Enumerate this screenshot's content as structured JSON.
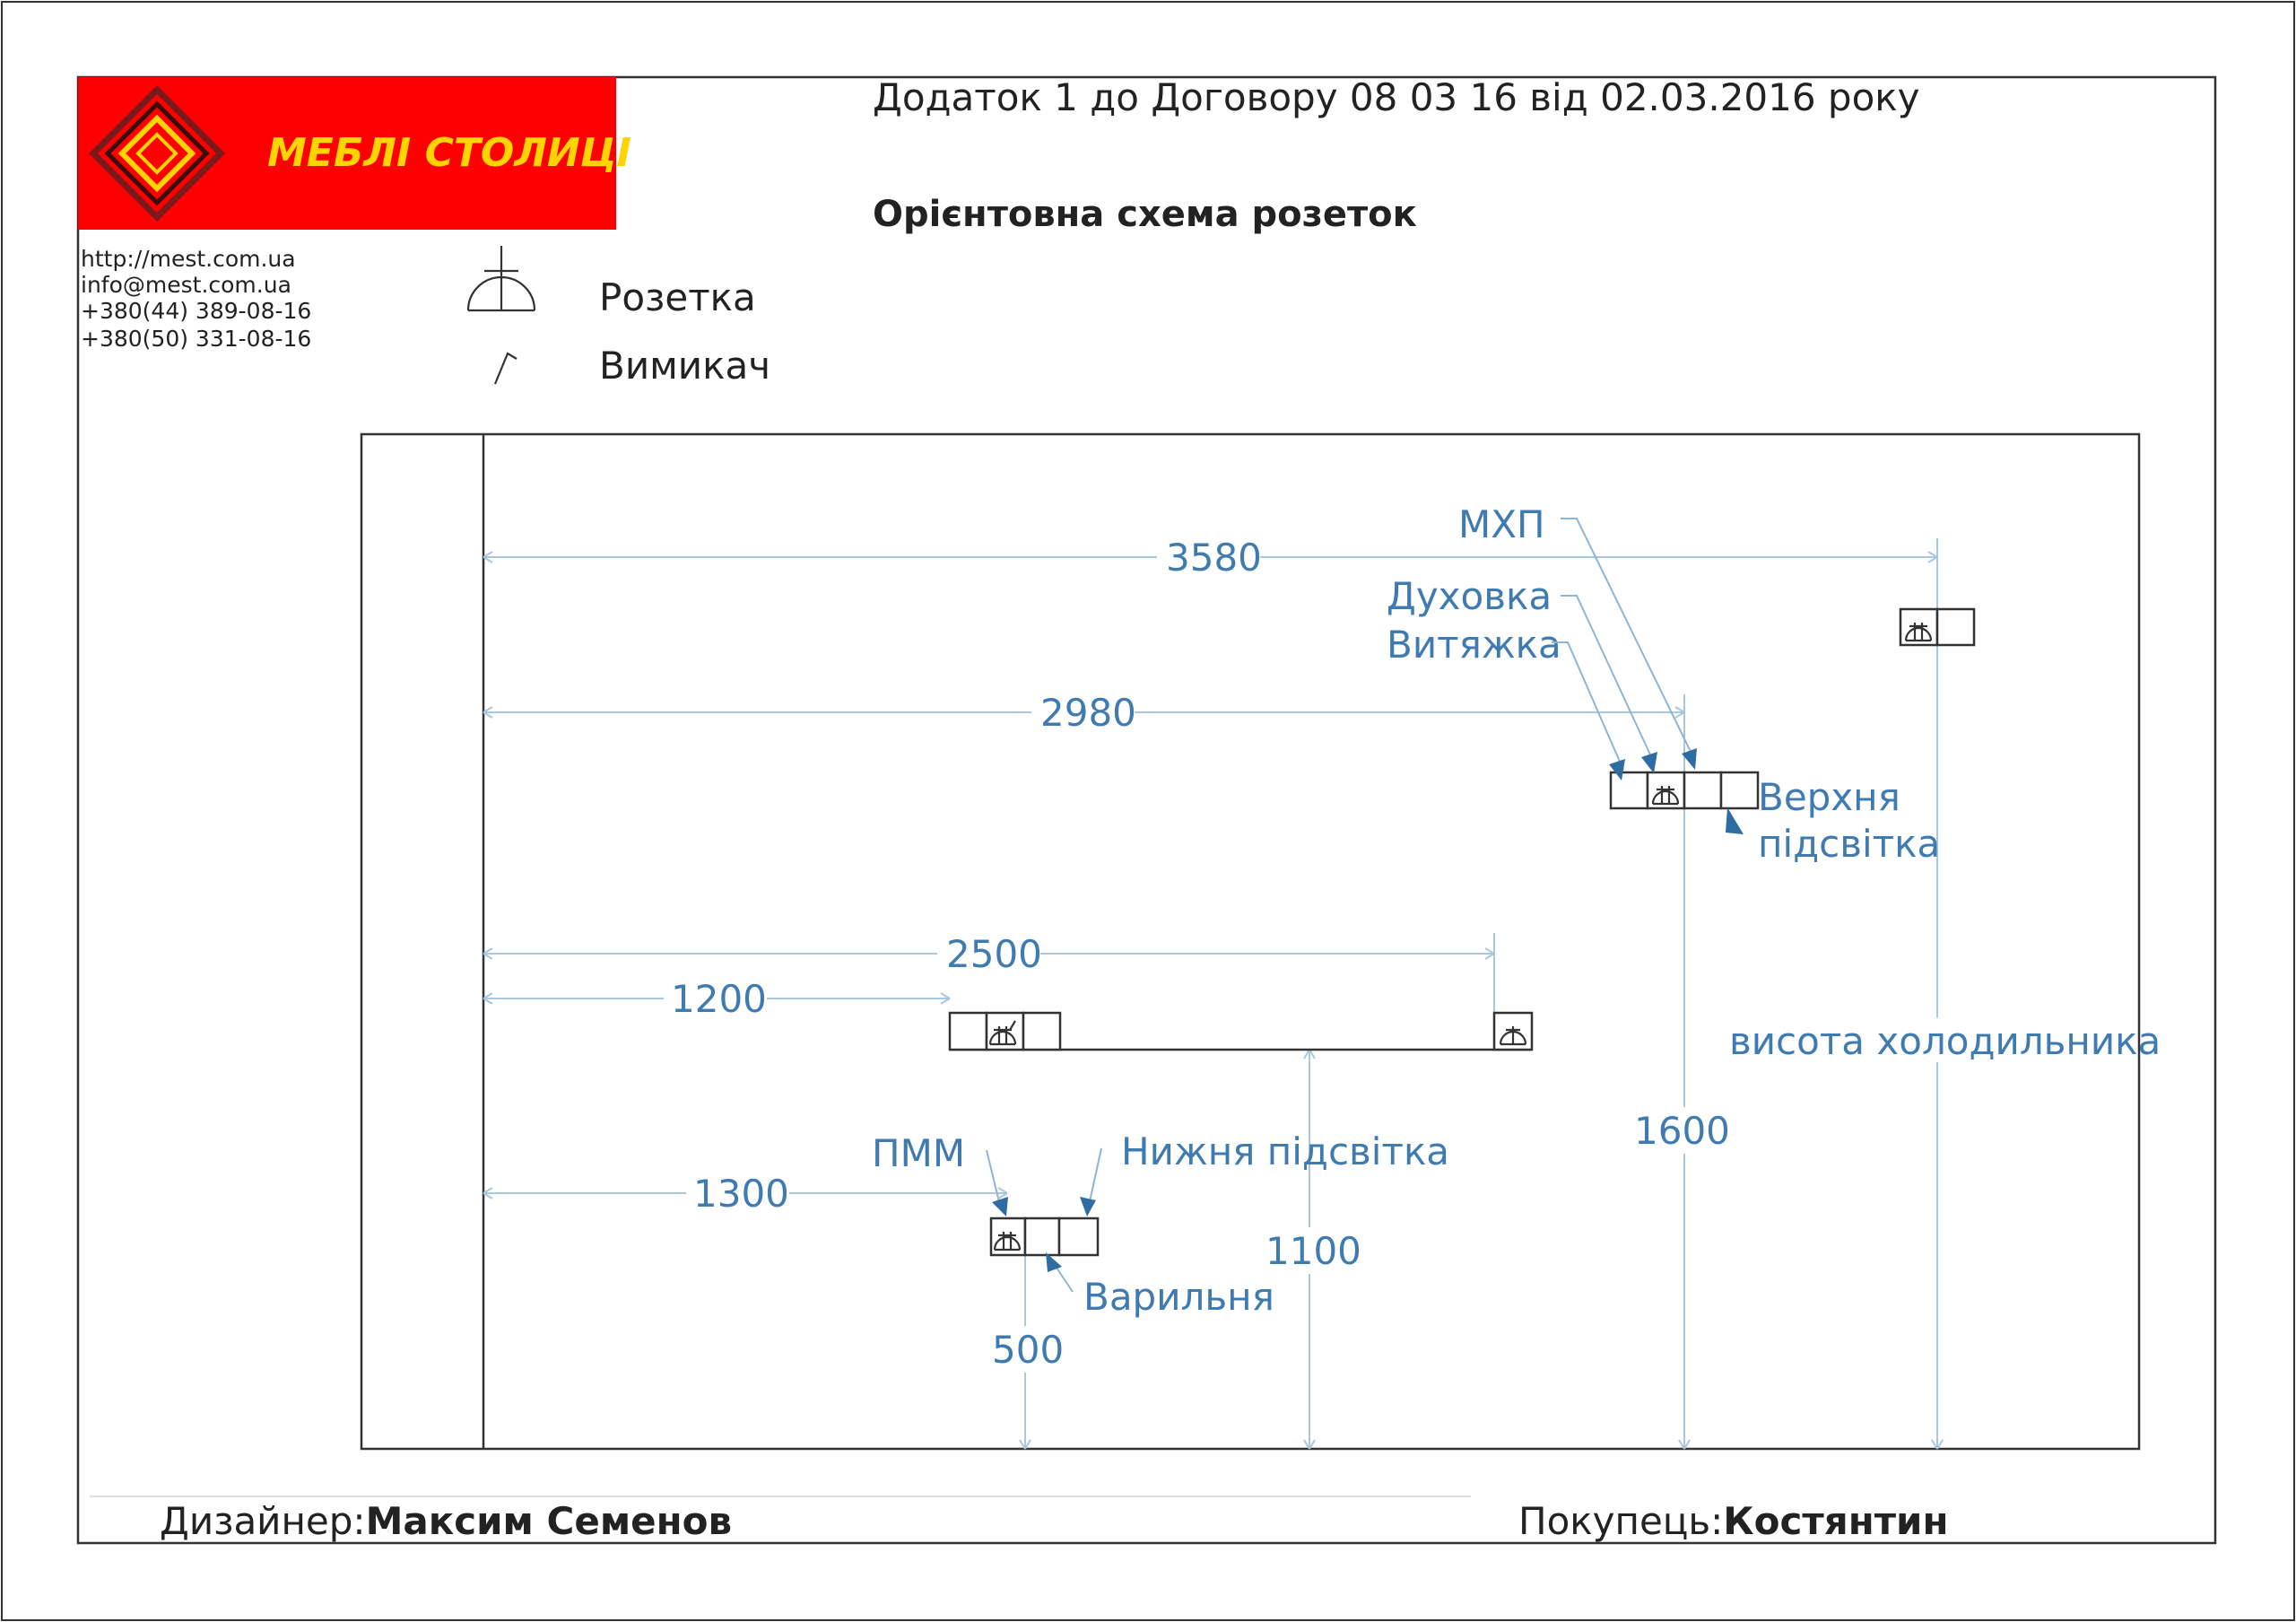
{
  "header": {
    "appendix": "Додаток 1 до Договору 08 03 16   від 02.03.2016 року",
    "title": "Орієнтовна схема розеток"
  },
  "logo": {
    "brand": "МЕБЛІ СТОЛИЦІ",
    "bg_color": "#ff0000",
    "accent_color": "#ffd400"
  },
  "contacts": {
    "website": "http://mest.com.ua",
    "email": "info@mest.com.ua",
    "phone1": "+380(44)   389-08-16",
    "phone2": "+380(50)   331-08-16"
  },
  "legend": {
    "socket": {
      "icon": "socket-symbol-icon",
      "label": "Розетка"
    },
    "switch": {
      "icon": "switch-symbol-icon",
      "label": "Вимикач"
    }
  },
  "dimensions": {
    "d3580": "3580",
    "d2980": "2980",
    "d2500": "2500",
    "d1200": "1200",
    "d1300": "1300",
    "d1600": "1600",
    "d1100": "1100",
    "d500": "500",
    "fridge_height": "висота холодильника"
  },
  "labels": {
    "mkhp": "МХП",
    "oven": "Духовка",
    "hood": "Витяжка",
    "upper_light_1": "Верхня",
    "upper_light_2": "підсвітка",
    "dishwasher": "ПММ",
    "lower_light": "Нижня підсвітка",
    "hob": "Варильня"
  },
  "footer": {
    "designer_label": "Дизайнер:",
    "designer_name": "Максим Семенов",
    "buyer_label": "Покупець:",
    "buyer_name": "Костянтин"
  },
  "colors": {
    "dimension": "#3f7bb0",
    "arrow": "#2e6ca4",
    "line": "#333333"
  }
}
